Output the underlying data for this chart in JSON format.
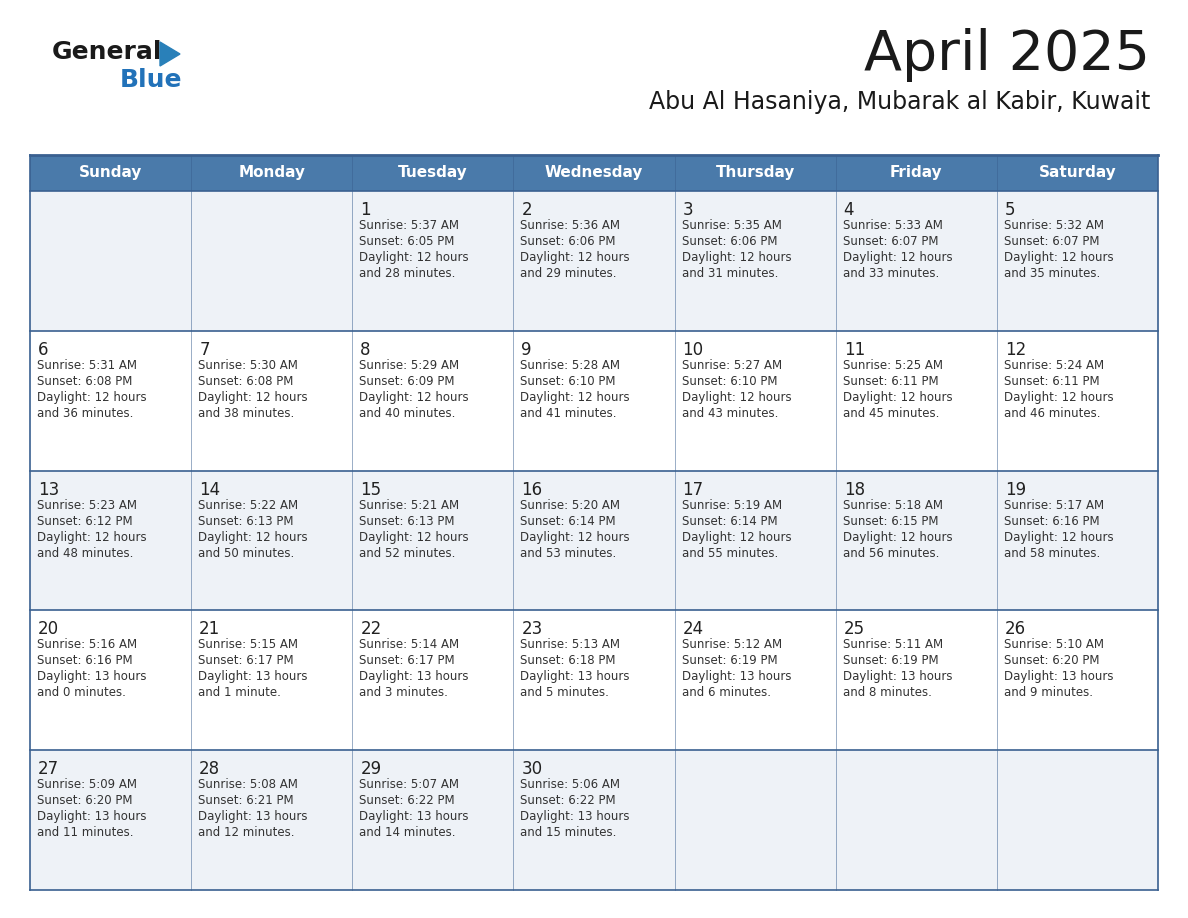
{
  "title": "April 2025",
  "subtitle": "Abu Al Hasaniya, Mubarak al Kabir, Kuwait",
  "header_bg": "#4a7aaa",
  "header_text_color": "#ffffff",
  "row0_bg": "#eef2f7",
  "row1_bg": "#ffffff",
  "row2_bg": "#eef2f7",
  "row3_bg": "#ffffff",
  "row4_bg": "#eef2f7",
  "border_color": "#3a6090",
  "text_color": "#333333",
  "day_num_color": "#222222",
  "day_names": [
    "Sunday",
    "Monday",
    "Tuesday",
    "Wednesday",
    "Thursday",
    "Friday",
    "Saturday"
  ],
  "weeks": [
    [
      {
        "day": "",
        "sunrise": "",
        "sunset": "",
        "daylight": ""
      },
      {
        "day": "",
        "sunrise": "",
        "sunset": "",
        "daylight": ""
      },
      {
        "day": "1",
        "sunrise": "5:37 AM",
        "sunset": "6:05 PM",
        "daylight": "12 hours\nand 28 minutes."
      },
      {
        "day": "2",
        "sunrise": "5:36 AM",
        "sunset": "6:06 PM",
        "daylight": "12 hours\nand 29 minutes."
      },
      {
        "day": "3",
        "sunrise": "5:35 AM",
        "sunset": "6:06 PM",
        "daylight": "12 hours\nand 31 minutes."
      },
      {
        "day": "4",
        "sunrise": "5:33 AM",
        "sunset": "6:07 PM",
        "daylight": "12 hours\nand 33 minutes."
      },
      {
        "day": "5",
        "sunrise": "5:32 AM",
        "sunset": "6:07 PM",
        "daylight": "12 hours\nand 35 minutes."
      }
    ],
    [
      {
        "day": "6",
        "sunrise": "5:31 AM",
        "sunset": "6:08 PM",
        "daylight": "12 hours\nand 36 minutes."
      },
      {
        "day": "7",
        "sunrise": "5:30 AM",
        "sunset": "6:08 PM",
        "daylight": "12 hours\nand 38 minutes."
      },
      {
        "day": "8",
        "sunrise": "5:29 AM",
        "sunset": "6:09 PM",
        "daylight": "12 hours\nand 40 minutes."
      },
      {
        "day": "9",
        "sunrise": "5:28 AM",
        "sunset": "6:10 PM",
        "daylight": "12 hours\nand 41 minutes."
      },
      {
        "day": "10",
        "sunrise": "5:27 AM",
        "sunset": "6:10 PM",
        "daylight": "12 hours\nand 43 minutes."
      },
      {
        "day": "11",
        "sunrise": "5:25 AM",
        "sunset": "6:11 PM",
        "daylight": "12 hours\nand 45 minutes."
      },
      {
        "day": "12",
        "sunrise": "5:24 AM",
        "sunset": "6:11 PM",
        "daylight": "12 hours\nand 46 minutes."
      }
    ],
    [
      {
        "day": "13",
        "sunrise": "5:23 AM",
        "sunset": "6:12 PM",
        "daylight": "12 hours\nand 48 minutes."
      },
      {
        "day": "14",
        "sunrise": "5:22 AM",
        "sunset": "6:13 PM",
        "daylight": "12 hours\nand 50 minutes."
      },
      {
        "day": "15",
        "sunrise": "5:21 AM",
        "sunset": "6:13 PM",
        "daylight": "12 hours\nand 52 minutes."
      },
      {
        "day": "16",
        "sunrise": "5:20 AM",
        "sunset": "6:14 PM",
        "daylight": "12 hours\nand 53 minutes."
      },
      {
        "day": "17",
        "sunrise": "5:19 AM",
        "sunset": "6:14 PM",
        "daylight": "12 hours\nand 55 minutes."
      },
      {
        "day": "18",
        "sunrise": "5:18 AM",
        "sunset": "6:15 PM",
        "daylight": "12 hours\nand 56 minutes."
      },
      {
        "day": "19",
        "sunrise": "5:17 AM",
        "sunset": "6:16 PM",
        "daylight": "12 hours\nand 58 minutes."
      }
    ],
    [
      {
        "day": "20",
        "sunrise": "5:16 AM",
        "sunset": "6:16 PM",
        "daylight": "13 hours\nand 0 minutes."
      },
      {
        "day": "21",
        "sunrise": "5:15 AM",
        "sunset": "6:17 PM",
        "daylight": "13 hours\nand 1 minute."
      },
      {
        "day": "22",
        "sunrise": "5:14 AM",
        "sunset": "6:17 PM",
        "daylight": "13 hours\nand 3 minutes."
      },
      {
        "day": "23",
        "sunrise": "5:13 AM",
        "sunset": "6:18 PM",
        "daylight": "13 hours\nand 5 minutes."
      },
      {
        "day": "24",
        "sunrise": "5:12 AM",
        "sunset": "6:19 PM",
        "daylight": "13 hours\nand 6 minutes."
      },
      {
        "day": "25",
        "sunrise": "5:11 AM",
        "sunset": "6:19 PM",
        "daylight": "13 hours\nand 8 minutes."
      },
      {
        "day": "26",
        "sunrise": "5:10 AM",
        "sunset": "6:20 PM",
        "daylight": "13 hours\nand 9 minutes."
      }
    ],
    [
      {
        "day": "27",
        "sunrise": "5:09 AM",
        "sunset": "6:20 PM",
        "daylight": "13 hours\nand 11 minutes."
      },
      {
        "day": "28",
        "sunrise": "5:08 AM",
        "sunset": "6:21 PM",
        "daylight": "13 hours\nand 12 minutes."
      },
      {
        "day": "29",
        "sunrise": "5:07 AM",
        "sunset": "6:22 PM",
        "daylight": "13 hours\nand 14 minutes."
      },
      {
        "day": "30",
        "sunrise": "5:06 AM",
        "sunset": "6:22 PM",
        "daylight": "13 hours\nand 15 minutes."
      },
      {
        "day": "",
        "sunrise": "",
        "sunset": "",
        "daylight": ""
      },
      {
        "day": "",
        "sunrise": "",
        "sunset": "",
        "daylight": ""
      },
      {
        "day": "",
        "sunrise": "",
        "sunset": "",
        "daylight": ""
      }
    ]
  ]
}
